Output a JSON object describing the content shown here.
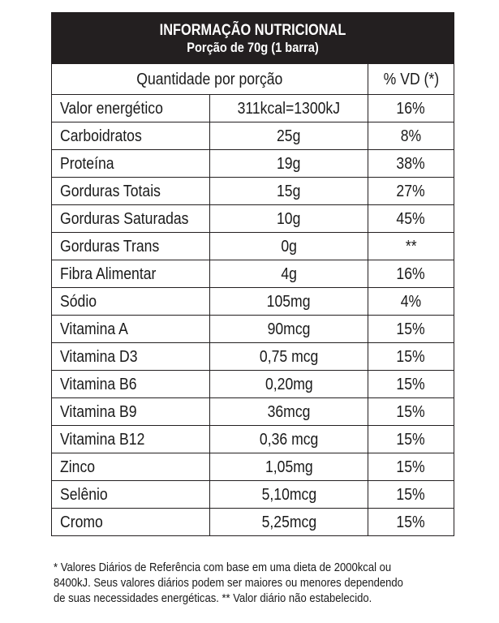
{
  "header": {
    "title": "INFORMAÇÃO NUTRICIONAL",
    "subtitle": "Porção de 70g (1 barra)"
  },
  "columns": {
    "quantity": "Quantidade por porção",
    "dv": "% VD (*)"
  },
  "rows": [
    {
      "name": "Valor energético",
      "amount": "311kcal=1300kJ",
      "dv": "16%"
    },
    {
      "name": "Carboidratos",
      "amount": "25g",
      "dv": "8%"
    },
    {
      "name": "Proteína",
      "amount": "19g",
      "dv": "38%"
    },
    {
      "name": "Gorduras Totais",
      "amount": "15g",
      "dv": "27%"
    },
    {
      "name": "Gorduras Saturadas",
      "amount": "10g",
      "dv": "45%"
    },
    {
      "name": "Gorduras Trans",
      "amount": "0g",
      "dv": "**"
    },
    {
      "name": "Fibra Alimentar",
      "amount": "4g",
      "dv": "16%"
    },
    {
      "name": "Sódio",
      "amount": "105mg",
      "dv": "4%"
    },
    {
      "name": "Vitamina A",
      "amount": "90mcg",
      "dv": "15%"
    },
    {
      "name": "Vitamina D3",
      "amount": "0,75 mcg",
      "dv": "15%"
    },
    {
      "name": "Vitamina B6",
      "amount": "0,20mg",
      "dv": "15%"
    },
    {
      "name": "Vitamina B9",
      "amount": "36mcg",
      "dv": "15%"
    },
    {
      "name": "Vitamina B12",
      "amount": "0,36 mcg",
      "dv": "15%"
    },
    {
      "name": "Zinco",
      "amount": "1,05mg",
      "dv": "15%"
    },
    {
      "name": "Selênio",
      "amount": "5,10mcg",
      "dv": "15%"
    },
    {
      "name": "Cromo",
      "amount": "5,25mcg",
      "dv": "15%"
    }
  ],
  "footnote": {
    "line1": "* Valores Diários de Referência com base em uma dieta de 2000kcal ou",
    "line2": "8400kJ. Seus valores diários podem ser maiores ou menores dependendo",
    "line3": "de suas necessidades energéticas. ** Valor diário não estabelecido."
  },
  "colors": {
    "header_bg": "#231f20",
    "header_text": "#ffffff",
    "border": "#231f20",
    "text": "#1a1a1a"
  }
}
